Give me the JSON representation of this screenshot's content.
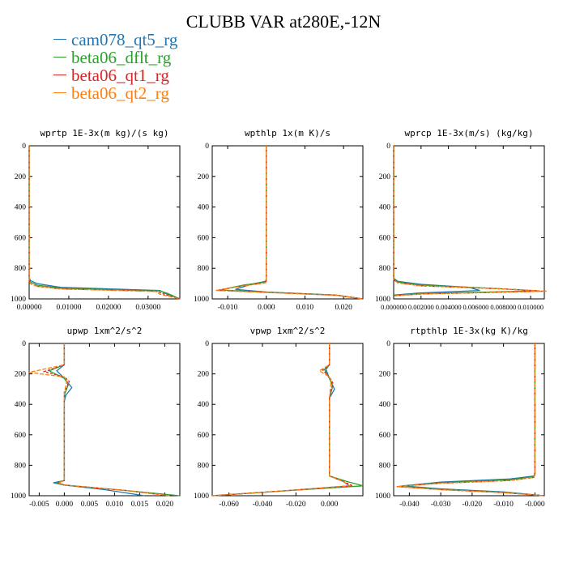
{
  "title": "CLUBB VAR at280E,-12N",
  "legend": [
    {
      "name": "cam078_qt5_rg",
      "color": "#1f77b4",
      "dash": ""
    },
    {
      "name": "beta06_dflt_rg",
      "color": "#2ca02c",
      "dash": ""
    },
    {
      "name": "beta06_qt1_rg",
      "color": "#d62728",
      "dash": "3,2"
    },
    {
      "name": "beta06_qt2_rg",
      "color": "#ff7f0e",
      "dash": "5,2"
    }
  ],
  "chart_data": [
    {
      "type": "line",
      "title": "wprtp  1E-3x(m kg)/(s kg)",
      "xlim": [
        0,
        0.038
      ],
      "ylim": [
        1000,
        0
      ],
      "xticks": [
        0,
        0.01,
        0.02,
        0.03
      ],
      "xtick_labels": [
        "0.00000",
        "0.01000",
        "0.02000",
        "0.03000"
      ],
      "yticks": [
        0,
        200,
        400,
        600,
        800,
        1000
      ],
      "series": [
        {
          "name": "cam078_qt5_rg",
          "x": [
            0,
            0,
            0.0003,
            0.002,
            0.008,
            0.033,
            0.034,
            0.038
          ],
          "y": [
            0,
            860,
            880,
            900,
            925,
            945,
            960,
            1000
          ]
        },
        {
          "name": "beta06_dflt_rg",
          "x": [
            0,
            0,
            0.0003,
            0.002,
            0.008,
            0.033,
            0.035,
            0.038
          ],
          "y": [
            0,
            870,
            890,
            910,
            930,
            948,
            965,
            1000
          ]
        },
        {
          "name": "beta06_qt1_rg",
          "x": [
            0,
            0,
            0.0003,
            0.002,
            0.008,
            0.032,
            0.034,
            0.038
          ],
          "y": [
            0,
            880,
            900,
            918,
            935,
            950,
            968,
            1000
          ]
        },
        {
          "name": "beta06_qt2_rg",
          "x": [
            0,
            0,
            0.0003,
            0.002,
            0.008,
            0.032,
            0.033,
            0.038
          ],
          "y": [
            0,
            880,
            900,
            918,
            935,
            952,
            970,
            1000
          ]
        }
      ]
    },
    {
      "type": "line",
      "title": "wpthlp  1x(m K)/s",
      "xlim": [
        -0.014,
        0.025
      ],
      "ylim": [
        1000,
        0
      ],
      "xticks": [
        -0.01,
        0,
        0.01,
        0.02
      ],
      "xtick_labels": [
        "-0.010",
        "0.000",
        "0.010",
        "0.020"
      ],
      "yticks": [
        0,
        200,
        400,
        600,
        800,
        1000
      ],
      "series": [
        {
          "name": "cam078_qt5_rg",
          "x": [
            0,
            0,
            -0.0002,
            -0.004,
            -0.008,
            0.0,
            0.018,
            0.025
          ],
          "y": [
            0,
            870,
            885,
            905,
            938,
            955,
            975,
            1000
          ]
        },
        {
          "name": "beta06_dflt_rg",
          "x": [
            0,
            0,
            -0.0002,
            -0.006,
            -0.012,
            0.0,
            0.018,
            0.025
          ],
          "y": [
            0,
            875,
            890,
            910,
            942,
            956,
            975,
            1000
          ]
        },
        {
          "name": "beta06_qt1_rg",
          "x": [
            0,
            0,
            -0.0002,
            -0.006,
            -0.013,
            0.0,
            0.018,
            0.025
          ],
          "y": [
            0,
            880,
            895,
            915,
            944,
            957,
            976,
            1000
          ]
        },
        {
          "name": "beta06_qt2_rg",
          "x": [
            0,
            0,
            -0.0002,
            -0.006,
            -0.013,
            0.0,
            0.018,
            0.025
          ],
          "y": [
            0,
            880,
            895,
            915,
            945,
            958,
            976,
            1000
          ]
        }
      ]
    },
    {
      "type": "line",
      "title": "wprcp  1E-3x(m/s) (kg/kg)",
      "xlim": [
        0,
        0.011
      ],
      "ylim": [
        1000,
        0
      ],
      "xticks": [
        0,
        0.002,
        0.004,
        0.006,
        0.008,
        0.01
      ],
      "xtick_labels": [
        "0.000000",
        "0.002000",
        "0.004000",
        "0.006000",
        "0.008000",
        "0.010000"
      ],
      "yticks": [
        0,
        200,
        400,
        600,
        800,
        1000
      ],
      "series": [
        {
          "name": "cam078_qt5_rg",
          "x": [
            0,
            0,
            0.0003,
            0.002,
            0.0055,
            0.0063,
            0.0018,
            0
          ],
          "y": [
            0,
            865,
            885,
            905,
            925,
            945,
            962,
            975
          ]
        },
        {
          "name": "beta06_dflt_rg",
          "x": [
            0,
            0,
            0.0003,
            0.002,
            0.0075,
            0.0105,
            0.002,
            0
          ],
          "y": [
            0,
            870,
            890,
            910,
            932,
            948,
            965,
            978
          ]
        },
        {
          "name": "beta06_qt1_rg",
          "x": [
            0,
            0,
            0.0003,
            0.002,
            0.008,
            0.011,
            0.002,
            0
          ],
          "y": [
            0,
            875,
            895,
            915,
            935,
            950,
            968,
            980
          ]
        },
        {
          "name": "beta06_qt2_rg",
          "x": [
            0,
            0,
            0.0003,
            0.002,
            0.008,
            0.0112,
            0.002,
            0
          ],
          "y": [
            0,
            875,
            895,
            915,
            935,
            950,
            968,
            980
          ]
        }
      ]
    },
    {
      "type": "line",
      "title": "upwp  1xm^2/s^2",
      "xlim": [
        -0.007,
        0.023
      ],
      "ylim": [
        1000,
        0
      ],
      "xticks": [
        -0.005,
        0,
        0.005,
        0.01,
        0.015,
        0.02
      ],
      "xtick_labels": [
        "-0.005",
        "0.000",
        "0.005",
        "0.010",
        "0.015",
        "0.020"
      ],
      "yticks": [
        0,
        200,
        400,
        600,
        800,
        1000
      ],
      "series": [
        {
          "name": "cam078_qt5_rg",
          "x": [
            0,
            0,
            -0.0015,
            0,
            0.0015,
            0.0003,
            0,
            0,
            -0.0022,
            0,
            0.008,
            0.016
          ],
          "y": [
            0,
            140,
            180,
            230,
            290,
            340,
            380,
            900,
            915,
            930,
            960,
            1000
          ]
        },
        {
          "name": "beta06_dflt_rg",
          "x": [
            0,
            0,
            -0.003,
            0,
            0.0008,
            0.0001,
            0,
            0,
            -0.0015,
            0,
            0.012,
            0.023
          ],
          "y": [
            0,
            140,
            180,
            230,
            270,
            330,
            380,
            900,
            915,
            930,
            965,
            1000
          ]
        },
        {
          "name": "beta06_qt1_rg",
          "x": [
            0,
            0,
            -0.004,
            0,
            0.001,
            0,
            0,
            0,
            -0.0012,
            0,
            0.012,
            0.021
          ],
          "y": [
            0,
            140,
            185,
            220,
            250,
            320,
            380,
            900,
            915,
            930,
            965,
            1000
          ]
        },
        {
          "name": "beta06_qt2_rg",
          "x": [
            0,
            0,
            -0.007,
            0,
            0.0005,
            0,
            0,
            0,
            -0.0012,
            0,
            0.012,
            0.021
          ],
          "y": [
            0,
            140,
            190,
            220,
            250,
            320,
            380,
            900,
            915,
            930,
            965,
            1000
          ]
        }
      ]
    },
    {
      "type": "line",
      "title": "vpwp  1xm^2/s^2",
      "xlim": [
        -0.07,
        0.02
      ],
      "ylim": [
        1000,
        0
      ],
      "xticks": [
        -0.06,
        -0.04,
        -0.02,
        0
      ],
      "xtick_labels": [
        "-0.060",
        "-0.040",
        "-0.020",
        "0.000"
      ],
      "yticks": [
        0,
        200,
        400,
        600,
        800,
        1000
      ],
      "series": [
        {
          "name": "cam078_qt5_rg",
          "x": [
            0,
            0,
            -0.002,
            0,
            0.003,
            0,
            0,
            0.008,
            0.012,
            -0.03,
            -0.07
          ],
          "y": [
            0,
            140,
            170,
            230,
            300,
            360,
            870,
            905,
            935,
            970,
            1000
          ]
        },
        {
          "name": "beta06_dflt_rg",
          "x": [
            0,
            0,
            -0.003,
            0,
            0.002,
            0,
            0,
            0.01,
            0.02,
            -0.03,
            -0.07
          ],
          "y": [
            0,
            140,
            170,
            230,
            280,
            360,
            870,
            905,
            935,
            970,
            1000
          ]
        },
        {
          "name": "beta06_qt1_rg",
          "x": [
            0,
            0,
            -0.004,
            0,
            0.002,
            0,
            0,
            0.008,
            0.014,
            -0.03,
            -0.07
          ],
          "y": [
            0,
            140,
            175,
            220,
            260,
            360,
            870,
            905,
            935,
            970,
            1000
          ]
        },
        {
          "name": "beta06_qt2_rg",
          "x": [
            0,
            0,
            -0.006,
            0,
            0.001,
            0,
            0,
            0.008,
            0.012,
            -0.03,
            -0.07
          ],
          "y": [
            0,
            140,
            180,
            220,
            250,
            360,
            870,
            905,
            935,
            970,
            1000
          ]
        }
      ]
    },
    {
      "type": "line",
      "title": "rtpthlp  1E-3x(kg K)/kg",
      "xlim": [
        -0.045,
        0.003
      ],
      "ylim": [
        1000,
        0
      ],
      "xticks": [
        -0.04,
        -0.03,
        -0.02,
        -0.01,
        0
      ],
      "xtick_labels": [
        "-0.040",
        "-0.030",
        "-0.020",
        "-0.010",
        "-0.000"
      ],
      "yticks": [
        0,
        200,
        400,
        600,
        800,
        1000
      ],
      "series": [
        {
          "name": "cam078_qt5_rg",
          "x": [
            0,
            0,
            -0.0003,
            -0.008,
            -0.03,
            -0.042,
            -0.03,
            -0.01,
            0.003
          ],
          "y": [
            0,
            850,
            870,
            890,
            910,
            935,
            955,
            975,
            1000
          ]
        },
        {
          "name": "beta06_dflt_rg",
          "x": [
            0,
            0,
            -0.0003,
            -0.008,
            -0.03,
            -0.043,
            -0.03,
            -0.01,
            0.003
          ],
          "y": [
            0,
            855,
            875,
            895,
            915,
            938,
            958,
            978,
            1000
          ]
        },
        {
          "name": "beta06_qt1_rg",
          "x": [
            0,
            0,
            -0.0003,
            -0.008,
            -0.03,
            -0.044,
            -0.03,
            -0.01,
            0.003
          ],
          "y": [
            0,
            860,
            880,
            900,
            918,
            940,
            960,
            980,
            1000
          ]
        },
        {
          "name": "beta06_qt2_rg",
          "x": [
            0,
            0,
            -0.0003,
            -0.008,
            -0.03,
            -0.044,
            -0.03,
            -0.01,
            0.003
          ],
          "y": [
            0,
            860,
            880,
            900,
            918,
            940,
            960,
            980,
            1000
          ]
        }
      ]
    }
  ]
}
